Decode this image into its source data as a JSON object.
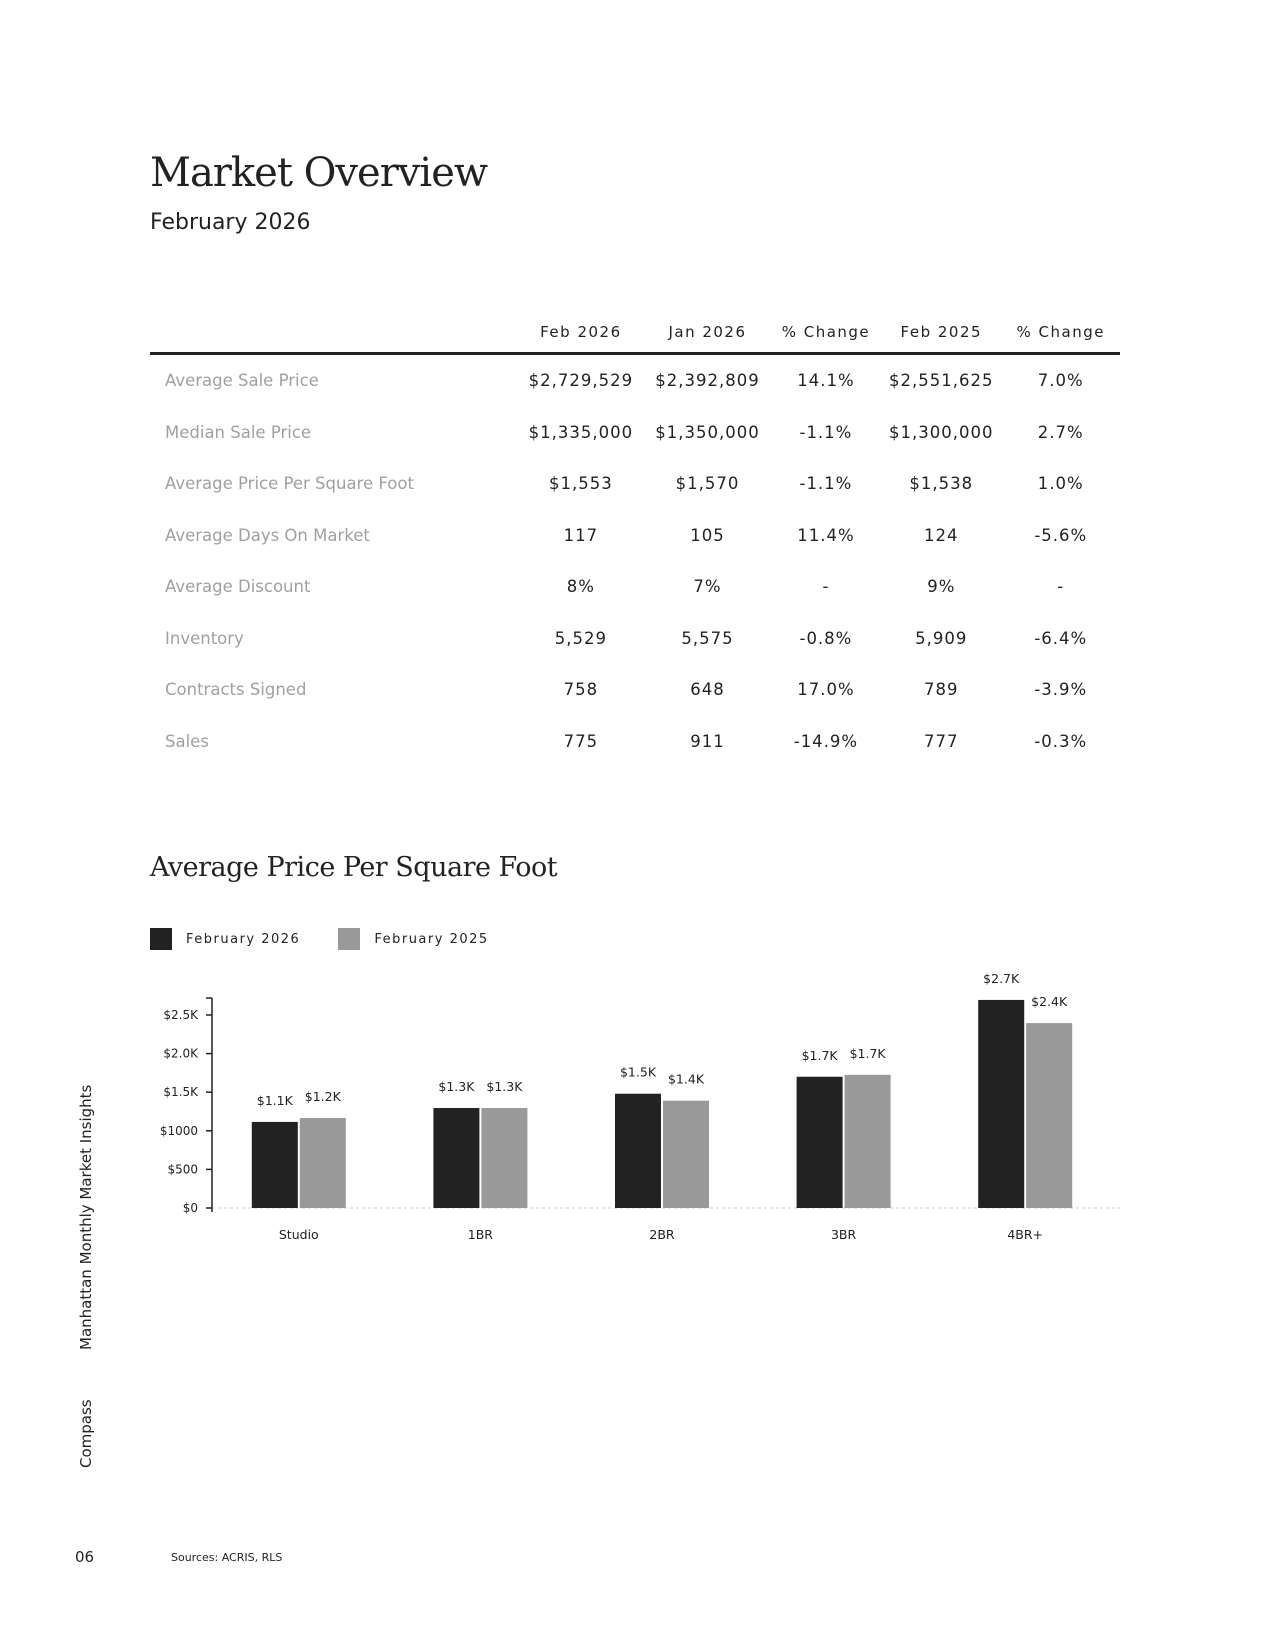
{
  "page": {
    "title": "Market Overview",
    "subtitle": "February 2026",
    "page_number": "06",
    "sources": "Sources: ACRIS, RLS",
    "side_label_1": "Manhattan Monthly Market Insights",
    "side_label_2": "Compass"
  },
  "table": {
    "headers": [
      "",
      "Feb 2026",
      "Jan 2026",
      "% Change",
      "Feb 2025",
      "% Change"
    ],
    "rows": [
      [
        "Average Sale Price",
        "$2,729,529",
        "$2,392,809",
        "14.1%",
        "$2,551,625",
        "7.0%"
      ],
      [
        "Median Sale Price",
        "$1,335,000",
        "$1,350,000",
        "-1.1%",
        "$1,300,000",
        "2.7%"
      ],
      [
        "Average Price Per Square Foot",
        "$1,553",
        "$1,570",
        "-1.1%",
        "$1,538",
        "1.0%"
      ],
      [
        "Average Days On Market",
        "117",
        "105",
        "11.4%",
        "124",
        "-5.6%"
      ],
      [
        "Average Discount",
        "8%",
        "7%",
        "-",
        "9%",
        "-"
      ],
      [
        "Inventory",
        "5,529",
        "5,575",
        "-0.8%",
        "5,909",
        "-6.4%"
      ],
      [
        "Contracts Signed",
        "758",
        "648",
        "17.0%",
        "789",
        "-3.9%"
      ],
      [
        "Sales",
        "775",
        "911",
        "-14.9%",
        "777",
        "-0.3%"
      ]
    ]
  },
  "chart_data": {
    "type": "bar",
    "title": "Average Price Per Square Foot",
    "categories": [
      "Studio",
      "1BR",
      "2BR",
      "3BR",
      "4BR+"
    ],
    "series": [
      {
        "name": "February 2026",
        "color": "#222222",
        "values": [
          1115,
          1295,
          1480,
          1700,
          2695
        ],
        "labels": [
          "$1.1K",
          "$1.3K",
          "$1.5K",
          "$1.7K",
          "$2.7K"
        ]
      },
      {
        "name": "February 2025",
        "color": "#999999",
        "values": [
          1165,
          1295,
          1390,
          1725,
          2395
        ],
        "labels": [
          "$1.2K",
          "$1.3K",
          "$1.4K",
          "$1.7K",
          "$2.4K"
        ]
      }
    ],
    "yticks": [
      0,
      500,
      1000,
      1500,
      2000,
      2500
    ],
    "ytick_labels": [
      "$0",
      "$500",
      "$1000",
      "$1.5K",
      "$2.0K",
      "$2.5K"
    ],
    "ylim": [
      0,
      2720
    ],
    "legend": "top-left",
    "grid": false
  }
}
